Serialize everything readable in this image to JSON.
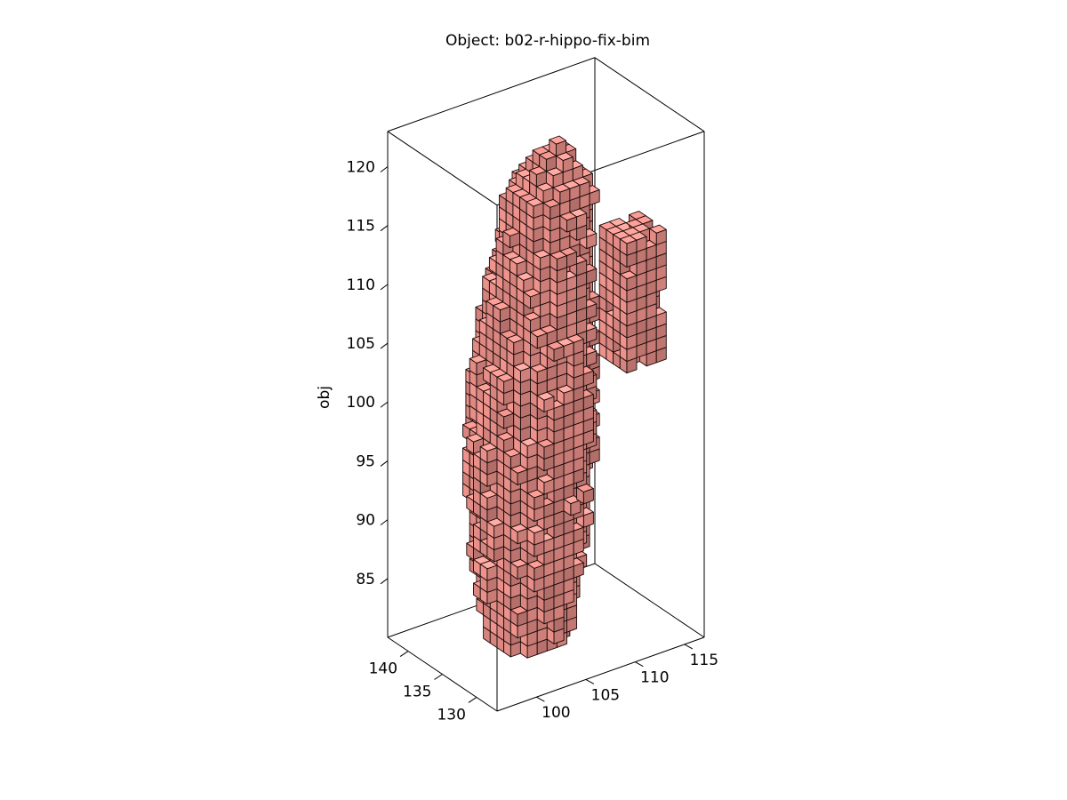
{
  "chart_data": {
    "type": "voxel-3d",
    "title": "Object: b02-r-hippo-fix-bim",
    "xlabel": "",
    "ylabel": "",
    "zlabel": "obj",
    "x_ticks": [
      100,
      105,
      110,
      115
    ],
    "y_ticks": [
      130,
      135,
      140
    ],
    "z_ticks": [
      85,
      90,
      95,
      100,
      105,
      110,
      115,
      120
    ],
    "xlim": [
      96,
      117
    ],
    "ylim": [
      127,
      143
    ],
    "zlim": [
      80,
      123
    ],
    "grid": false,
    "box": true,
    "object_name": "b02-r-hippo-fix-bim",
    "face_color": "#e08a84",
    "edge_color": "#000000"
  }
}
